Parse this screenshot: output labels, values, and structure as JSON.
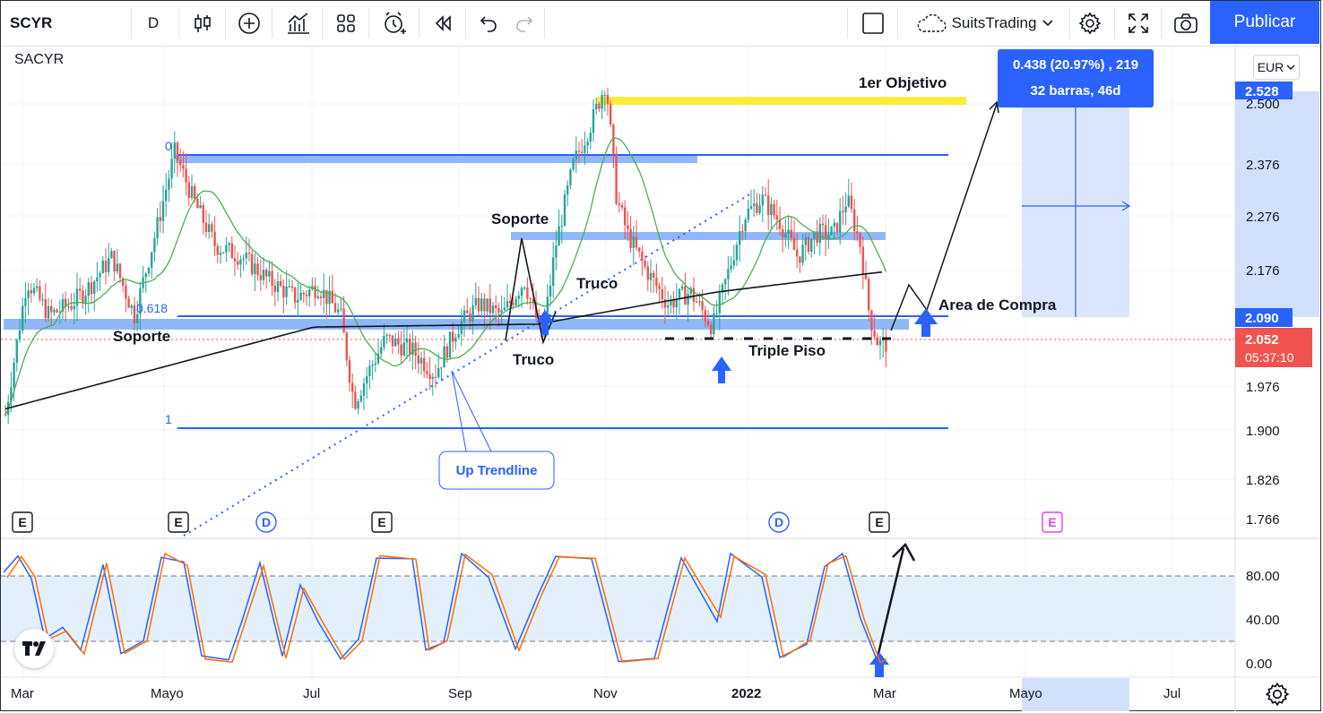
{
  "toolbar": {
    "symbol": "SCYR",
    "interval": "D",
    "account_name": "SuitsTrading",
    "publish_label": "Publicar",
    "icons": [
      "bar-style-icon",
      "add-indicator-icon",
      "indicators-icon",
      "layout-grid-icon",
      "alert-icon",
      "replay-icon",
      "undo-icon",
      "redo-icon",
      "fullscreen-window-icon",
      "cloud-icon",
      "settings-icon",
      "fullscreen-icon",
      "camera-icon"
    ]
  },
  "chart": {
    "symbol_name": "SACYR",
    "currency": "EUR",
    "price_axis": {
      "ticks": [
        "2.500",
        "2.376",
        "2.276",
        "2.176",
        "2.090",
        "1.976",
        "1.900",
        "1.826",
        "1.766"
      ],
      "badges": {
        "top": "2.528",
        "low": "2.090",
        "last_price": "2.052",
        "countdown": "05:37:10"
      }
    },
    "oscillator_axis": {
      "ticks": [
        "80.00",
        "40.00",
        "0.00"
      ]
    },
    "time_axis": {
      "labels": [
        "Mar",
        "Mayo",
        "Jul",
        "Sep",
        "Nov",
        "2022",
        "Mar",
        "Mayo",
        "Jul"
      ]
    },
    "fib_labels": {
      "level0": "0",
      "level618": "0.618",
      "level1": "1"
    },
    "annotations": {
      "target": "1er Objetivo",
      "support_left": "Soporte",
      "support_mid": "Soporte",
      "trick_upper": "Truco",
      "trick_lower": "Truco",
      "buy_area": "Area de Compra",
      "triple_floor": "Triple Piso",
      "trendline": "Up Trendline"
    },
    "measure": {
      "line1": "0.438 (20.97%) , 219",
      "line2": "32 barras, 46d"
    },
    "events": [
      "E",
      "E",
      "D",
      "E",
      "D",
      "E",
      "E"
    ],
    "colors": {
      "up": "#26a69a",
      "down": "#ef5350",
      "accent": "#2962ff",
      "target": "#ffeb3b",
      "support": "#90b8f8",
      "ma_green": "#4caf50",
      "ma_black": "#131722",
      "stoch_k": "#2962ff",
      "stoch_d": "#ff6d00"
    }
  },
  "chart_data": {
    "type": "candlestick",
    "title": "SACYR",
    "x": [
      "Mar",
      "Mayo",
      "Jul",
      "Sep",
      "Nov",
      "2022",
      "Mar"
    ],
    "close": [
      1.93,
      2.36,
      2.06,
      2.05,
      2.5,
      2.21,
      2.052
    ],
    "ylim": [
      1.72,
      2.56
    ],
    "price_levels": {
      "fib_0": 2.405,
      "fib_0618": 2.09,
      "fib_1": 1.9,
      "support": 2.072,
      "support_mid": 2.245,
      "target": 2.51,
      "last": 2.052
    },
    "measure": {
      "change": 0.438,
      "change_pct": 20.97,
      "bars": 32,
      "days": 46
    },
    "stochastic": {
      "ylim": [
        0,
        100
      ],
      "upper": 80,
      "lower": 20
    }
  }
}
